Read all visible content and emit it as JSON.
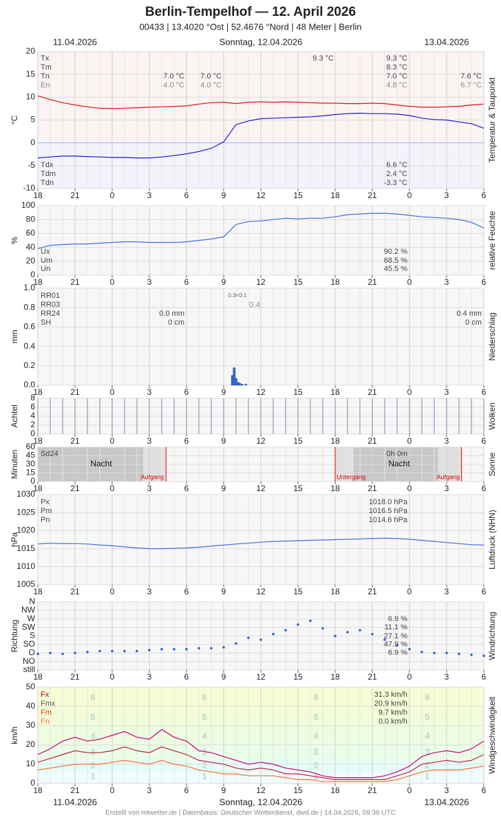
{
  "header": {
    "title": "Berlin-Tempelhof  —  12. April 2026",
    "subtitle": "00433  |  13.4020 °Ost  |  52.4676 °Nord  |  48 Meter  |  Berlin",
    "date_left": "11.04.2026",
    "date_center": "Sonntag, 12.04.2026",
    "date_right": "13.04.2026"
  },
  "footer": "Erstellt von mtwetter.de | Datenbasis: Deutscher Wetterdienst, dwd.de | 14.04.2026, 09:36 UTC",
  "xaxis": {
    "x": [
      0,
      1,
      2,
      3,
      4,
      5,
      6,
      7,
      8,
      9,
      10,
      11,
      12,
      13,
      14,
      15,
      16,
      17,
      18,
      19,
      20,
      21,
      22,
      23,
      24,
      25,
      26,
      27,
      28,
      29,
      30,
      31,
      32,
      33,
      34,
      35,
      36
    ],
    "xlim": [
      0,
      36
    ],
    "xticks": [
      {
        "value": 0,
        "label": "18"
      },
      {
        "value": 3,
        "label": "21"
      },
      {
        "value": 6,
        "label": "0"
      },
      {
        "value": 9,
        "label": "3"
      },
      {
        "value": 12,
        "label": "6"
      },
      {
        "value": 15,
        "label": "9"
      },
      {
        "value": 18,
        "label": "12"
      },
      {
        "value": 21,
        "label": "15"
      },
      {
        "value": 24,
        "label": "18"
      },
      {
        "value": 27,
        "label": "21"
      },
      {
        "value": 30,
        "label": "0"
      },
      {
        "value": 33,
        "label": "3"
      },
      {
        "value": 36,
        "label": "6"
      }
    ]
  },
  "chart_data": [
    {
      "type": "line",
      "title": "Temperatur & Taupunkt",
      "ylabel": "°C",
      "ylim": [
        -10,
        20
      ],
      "yticks": [
        -10,
        -5,
        0,
        5,
        10,
        15,
        20
      ],
      "series": [
        {
          "name": "Tm",
          "color": "#e01010",
          "values": [
            10.3,
            9.5,
            8.8,
            8.3,
            7.9,
            7.6,
            7.5,
            7.6,
            7.7,
            7.8,
            7.9,
            8.0,
            8.1,
            8.5,
            8.8,
            8.9,
            8.6,
            8.9,
            9.0,
            8.9,
            9.0,
            8.9,
            8.8,
            8.7,
            8.7,
            8.6,
            8.6,
            8.7,
            8.6,
            8.3,
            8.0,
            7.8,
            7.8,
            7.9,
            8.0,
            8.3,
            8.5
          ]
        },
        {
          "name": "Tdm",
          "color": "#1a1acc",
          "values": [
            -3.3,
            -3.1,
            -2.9,
            -2.9,
            -3.0,
            -3.1,
            -3.2,
            -3.2,
            -3.3,
            -3.3,
            -3.1,
            -2.8,
            -2.4,
            -1.9,
            -1.2,
            0.2,
            4.0,
            4.8,
            5.3,
            5.4,
            5.5,
            5.6,
            5.7,
            5.9,
            6.2,
            6.4,
            6.5,
            6.4,
            6.4,
            6.3,
            6.0,
            5.4,
            5.1,
            5.0,
            4.6,
            4.2,
            3.2
          ]
        }
      ],
      "notes": [
        "Tx",
        "Tm",
        "Tn",
        "En",
        "7.0 °C",
        "4.0 °C",
        "7.0 °C",
        "4.0 °C",
        "9.3 °C",
        "9.3 °C",
        "8.3 °C",
        "7.0 °C",
        "4.8 °C",
        "7.6 °C",
        "6.7 °C",
        "Tdx",
        "Tdm",
        "Tdn",
        "6.6 °C",
        "2.4 °C",
        "-3.3 °C"
      ]
    },
    {
      "type": "line",
      "title": "relative Feuchte",
      "ylabel": "%",
      "ylim": [
        0,
        100
      ],
      "yticks": [
        0,
        20,
        40,
        60,
        80,
        100
      ],
      "series": [
        {
          "name": "Um",
          "color": "#3a6ee0",
          "values": [
            38,
            43,
            44,
            45,
            45,
            46,
            47,
            48,
            48,
            47,
            47,
            47,
            48,
            50,
            52,
            55,
            73,
            77,
            78,
            80,
            82,
            81,
            82,
            82,
            84,
            87,
            88,
            89,
            89,
            88,
            86,
            84,
            83,
            82,
            80,
            76,
            68
          ]
        }
      ],
      "notes": [
        "Ux",
        "Um",
        "Un",
        "90.2 %",
        "68.5 %",
        "45.5 %"
      ]
    },
    {
      "type": "bar",
      "title": "Niederschlag",
      "ylabel": "mm",
      "ylim": [
        0,
        1
      ],
      "yticks": [
        {
          "value": 0,
          "label": "0.0"
        },
        0.2,
        0.4,
        0.6,
        0.8,
        {
          "value": 1,
          "label": "1.0"
        }
      ],
      "x": [
        15.7,
        15.85,
        16.0,
        16.15,
        16.3,
        16.5,
        16.8
      ],
      "values": [
        0.1,
        0.18,
        0.07,
        0.03,
        0.02,
        0.01,
        0.01
      ],
      "color": "#3a6ee0",
      "notes": [
        "RR01",
        "RR03",
        "RR24",
        "SH",
        "0.0 mm",
        "0 cm",
        "0.3<0.1",
        "0.4",
        "0.4 mm",
        "0 cm"
      ]
    },
    {
      "type": "clouds",
      "title": "Wolken",
      "ylabel": "Achtel",
      "ylim": [
        0,
        8
      ],
      "yticks": [
        0,
        2,
        4,
        6,
        8
      ],
      "color": "#8a9ab8",
      "values": [
        8,
        8,
        8,
        8,
        8,
        8,
        8,
        8,
        8,
        8,
        8,
        8,
        8,
        8,
        8,
        8,
        8,
        8,
        8,
        8,
        8,
        8,
        8,
        8,
        8,
        8,
        8,
        8,
        8,
        8,
        8,
        8,
        8,
        8,
        8,
        8,
        8
      ]
    },
    {
      "type": "sun",
      "title": "Sonne",
      "ylabel": "Minuten",
      "ylim": [
        0,
        60
      ],
      "yticks": [
        0,
        15,
        30,
        45,
        60
      ],
      "sunrise": [
        10.35,
        34.2
      ],
      "sunset": [
        24
      ],
      "notes": [
        "Sd24",
        "Nacht",
        "Aufgang",
        "0h 0m",
        "Untergang",
        "Nacht",
        "Aufgang"
      ]
    },
    {
      "type": "line",
      "title": "Luftdruck (NHN)",
      "ylabel": "hPa",
      "ylim": [
        1005,
        1030
      ],
      "yticks": [
        1005,
        1010,
        1015,
        1020,
        1025,
        1030
      ],
      "series": [
        {
          "name": "Pm",
          "color": "#3a6ee0",
          "values": [
            1016.3,
            1016.5,
            1016.4,
            1016.4,
            1016.3,
            1016.0,
            1015.8,
            1015.5,
            1015.2,
            1015.0,
            1015.0,
            1015.1,
            1015.2,
            1015.4,
            1015.7,
            1016.0,
            1016.3,
            1016.5,
            1016.8,
            1017.0,
            1017.1,
            1017.2,
            1017.3,
            1017.4,
            1017.5,
            1017.6,
            1017.7,
            1017.8,
            1017.9,
            1017.8,
            1017.6,
            1017.3,
            1017.0,
            1016.7,
            1016.4,
            1016.1,
            1016.0
          ]
        }
      ],
      "notes": [
        "Px",
        "Pm",
        "Pn",
        "1018.0 hPa",
        "1016.5 hPa",
        "1014.6 hPa"
      ]
    },
    {
      "type": "scatter",
      "title": "Windrichtung",
      "ylabel": "Richtung",
      "ylim": [
        0,
        360
      ],
      "yticks": [
        {
          "value": 0,
          "label": "still"
        },
        {
          "value": 45,
          "label": "NO"
        },
        {
          "value": 90,
          "label": "O"
        },
        {
          "value": 135,
          "label": "SO"
        },
        {
          "value": 180,
          "label": "S"
        },
        {
          "value": 225,
          "label": "SW"
        },
        {
          "value": 270,
          "label": "W"
        },
        {
          "value": 315,
          "label": "NW"
        },
        {
          "value": 360,
          "label": "N"
        }
      ],
      "color": "#2a5ee0",
      "values": [
        85,
        90,
        85,
        90,
        95,
        100,
        100,
        100,
        100,
        105,
        110,
        110,
        110,
        115,
        115,
        120,
        140,
        170,
        160,
        190,
        210,
        240,
        260,
        220,
        180,
        200,
        210,
        190,
        160,
        130,
        110,
        95,
        90,
        90,
        85,
        80,
        75
      ],
      "notes": [
        "6.9 %",
        "11.1 %",
        "27.1 %",
        "47.9 %",
        "6.9 %"
      ]
    },
    {
      "type": "line",
      "title": "Windgeschwindigkeit",
      "ylabel": "km/h",
      "ylim": [
        0,
        50
      ],
      "yticks": [
        0,
        10,
        20,
        30,
        40,
        50
      ],
      "beaufort": {
        "labels": [
          "1",
          "2",
          "3",
          "4",
          "5",
          "6"
        ],
        "bounds": [
          1,
          6,
          12,
          20,
          29,
          39,
          50
        ]
      },
      "series": [
        {
          "name": "Fx",
          "color": "#c8007a",
          "values": [
            15,
            18,
            22,
            24,
            22,
            23,
            25,
            27,
            24,
            23,
            28,
            24,
            22,
            17,
            16,
            14,
            12,
            10,
            11,
            10,
            8,
            7,
            6,
            4,
            3,
            3,
            3,
            3,
            4,
            6,
            9,
            14,
            16,
            17,
            16,
            18,
            22
          ]
        },
        {
          "name": "Fmx",
          "color": "#c02040",
          "values": [
            11,
            13,
            15,
            17,
            16,
            16,
            17,
            19,
            17,
            16,
            19,
            17,
            15,
            12,
            11,
            10,
            8,
            7,
            8,
            7,
            5,
            5,
            4,
            3,
            2,
            2,
            2,
            2,
            2,
            4,
            6,
            10,
            11,
            12,
            11,
            12,
            15
          ]
        },
        {
          "name": "Fm",
          "color": "#ff6a30",
          "values": [
            7,
            8,
            9,
            10,
            10,
            10,
            11,
            12,
            11,
            10,
            12,
            10,
            9,
            7,
            6,
            5,
            5,
            4,
            4,
            4,
            3,
            2,
            2,
            1,
            1,
            1,
            1,
            1,
            1,
            2,
            4,
            6,
            7,
            7,
            7,
            8,
            9
          ]
        }
      ],
      "notes": [
        "Fx",
        "Fmx",
        "Fm",
        "Fn",
        "31.3 km/h",
        "20.9 km/h",
        "9.7 km/h",
        "0.0 km/h"
      ]
    }
  ]
}
